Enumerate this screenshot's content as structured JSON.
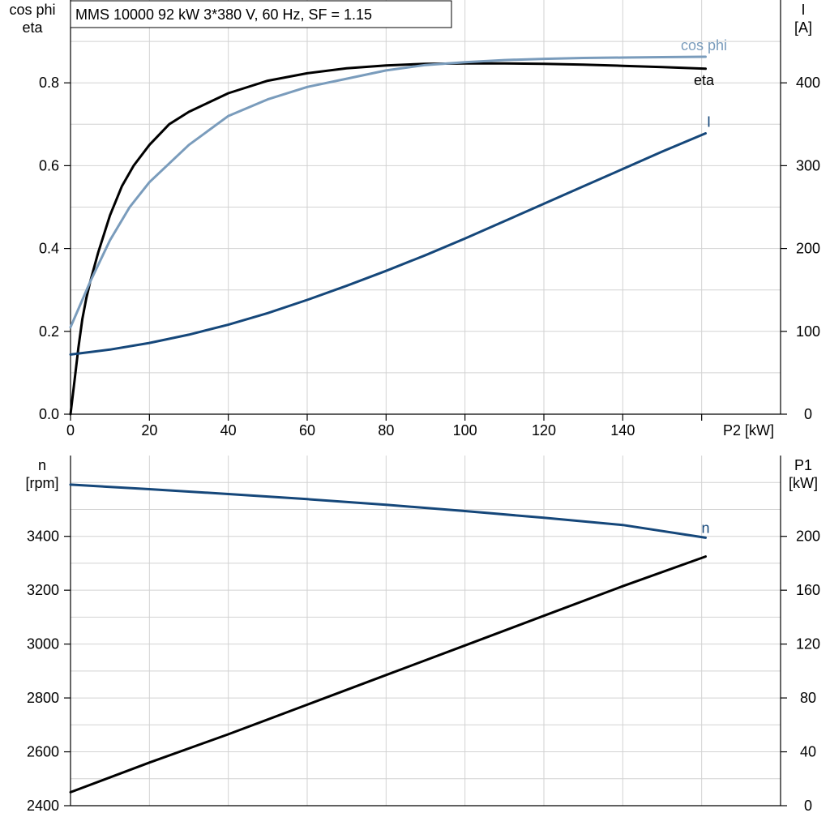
{
  "chart_data": [
    {
      "type": "line",
      "title": "MMS 10000   92 kW   3*380 V, 60 Hz, SF = 1.15",
      "ylabel_left_lines": [
        "cos phi",
        "eta"
      ],
      "ylabel_right_lines": [
        "I",
        "[A]"
      ],
      "xlabel": "P2 [kW]",
      "xlim": [
        0,
        180
      ],
      "xticks": [
        0,
        20,
        40,
        60,
        80,
        100,
        120,
        140
      ],
      "ylim_left": [
        0,
        1.0
      ],
      "yticks_left": [
        0.0,
        0.2,
        0.4,
        0.6,
        0.8
      ],
      "ylim_right": [
        0,
        500
      ],
      "yticks_right": [
        0,
        100,
        200,
        300,
        400
      ],
      "grid": true,
      "series": [
        {
          "name": "eta",
          "axis": "left",
          "color": "#000000",
          "x": [
            0,
            1,
            2,
            3,
            4,
            5,
            7,
            10,
            13,
            16,
            20,
            25,
            30,
            40,
            50,
            60,
            70,
            80,
            90,
            100,
            110,
            120,
            130,
            140,
            150,
            161
          ],
          "y": [
            0.0,
            0.08,
            0.16,
            0.23,
            0.28,
            0.32,
            0.39,
            0.48,
            0.55,
            0.6,
            0.65,
            0.7,
            0.73,
            0.775,
            0.805,
            0.823,
            0.835,
            0.842,
            0.846,
            0.847,
            0.847,
            0.846,
            0.844,
            0.841,
            0.838,
            0.834
          ]
        },
        {
          "name": "cos phi",
          "axis": "left",
          "color": "#7a9cbc",
          "x": [
            0,
            5,
            10,
            15,
            20,
            30,
            40,
            50,
            60,
            70,
            80,
            90,
            100,
            110,
            120,
            130,
            140,
            150,
            161
          ],
          "y": [
            0.21,
            0.32,
            0.42,
            0.5,
            0.56,
            0.65,
            0.72,
            0.76,
            0.79,
            0.81,
            0.83,
            0.843,
            0.85,
            0.855,
            0.858,
            0.86,
            0.861,
            0.862,
            0.863
          ]
        },
        {
          "name": "I",
          "axis": "right",
          "color": "#15477a",
          "x": [
            0,
            10,
            20,
            30,
            40,
            50,
            60,
            70,
            80,
            90,
            100,
            110,
            120,
            130,
            140,
            150,
            161
          ],
          "y": [
            72,
            78,
            86,
            96,
            108,
            122,
            138,
            155,
            173,
            192,
            212,
            233,
            254,
            275,
            296,
            317,
            339
          ]
        }
      ]
    },
    {
      "type": "line",
      "ylabel_left_lines": [
        "n",
        "[rpm]"
      ],
      "ylabel_right_lines": [
        "P1",
        "[kW]"
      ],
      "xlim": [
        0,
        180
      ],
      "ylim_left": [
        2400,
        3700
      ],
      "yticks_left": [
        2400,
        2600,
        2800,
        3000,
        3200,
        3400
      ],
      "ylim_right": [
        0,
        260
      ],
      "yticks_right": [
        0,
        40,
        80,
        120,
        160,
        200
      ],
      "grid": true,
      "series": [
        {
          "name": "n",
          "axis": "left",
          "color": "#15477a",
          "x": [
            0,
            20,
            40,
            60,
            80,
            100,
            120,
            140,
            161
          ],
          "y": [
            3592,
            3575,
            3557,
            3538,
            3517,
            3494,
            3469,
            3442,
            3395
          ]
        },
        {
          "axis": "right",
          "color": "#000000",
          "x": [
            0,
            20,
            40,
            60,
            80,
            100,
            120,
            140,
            161
          ],
          "y": [
            10,
            32,
            53,
            75,
            97,
            119,
            141,
            163,
            185
          ]
        }
      ]
    }
  ]
}
